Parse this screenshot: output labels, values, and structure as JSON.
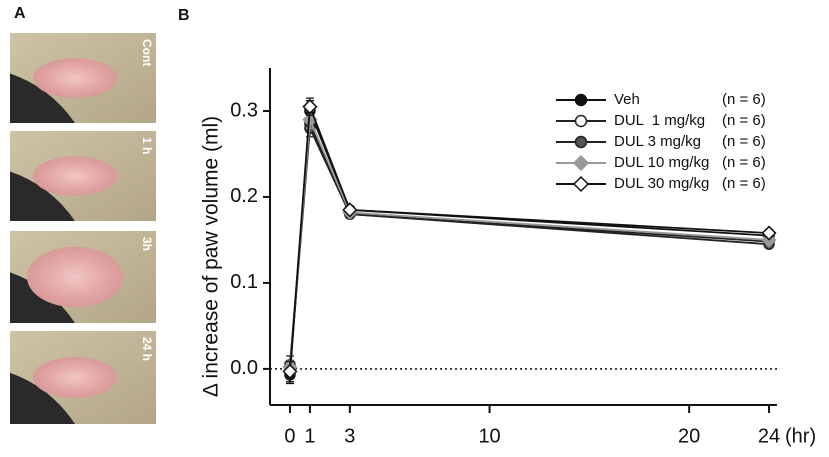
{
  "panel_a": {
    "label": "A",
    "images": [
      {
        "label": "Cont"
      },
      {
        "label": "1 h"
      },
      {
        "label": "3h"
      },
      {
        "label": "24 h"
      }
    ]
  },
  "chart_data": {
    "type": "line",
    "panel_label": "B",
    "x_label": "(hr)",
    "y_label": "Δ increase of paw volume (ml)",
    "x": [
      0,
      1,
      3,
      24
    ],
    "xlim": [
      -1,
      24.4
    ],
    "xticks": [
      0,
      1,
      3,
      10,
      20,
      24
    ],
    "ylim": [
      -0.042,
      0.35
    ],
    "yticks": [
      {
        "value": 0,
        "label": "0.0"
      },
      0.1,
      0.2,
      0.3
    ],
    "hline": 0,
    "legend": "top-right",
    "series": [
      {
        "name": "Veh",
        "n": "(n = 6)",
        "color": "#111111",
        "marker": "circle",
        "fill": "#111111",
        "values": [
          -0.007,
          0.3,
          0.185,
          0.155
        ],
        "errors": [
          0.01,
          0.012,
          0.003,
          0.004
        ]
      },
      {
        "name": "DUL  1 mg/kg",
        "n": "(n = 6)",
        "color": "#222222",
        "marker": "circle",
        "fill": "#ffffff",
        "values": [
          0.005,
          0.285,
          0.18,
          0.148
        ],
        "errors": [
          0.01,
          0.01,
          0.003,
          0.004
        ]
      },
      {
        "name": "DUL 3 mg/kg",
        "n": "(n = 6)",
        "color": "#222222",
        "marker": "circle",
        "fill": "#555555",
        "values": [
          0.0,
          0.28,
          0.18,
          0.145
        ],
        "errors": [
          0.008,
          0.01,
          0.003,
          0.004
        ]
      },
      {
        "name": "DUL 10 mg/kg",
        "n": "(n = 6)",
        "color": "#999999",
        "marker": "diamond",
        "fill": "#999999",
        "values": [
          0.002,
          0.29,
          0.182,
          0.15
        ],
        "errors": [
          0.008,
          0.01,
          0.003,
          0.004
        ]
      },
      {
        "name": "DUL 30 mg/kg",
        "n": "(n = 6)",
        "color": "#111111",
        "marker": "diamond",
        "fill": "#ffffff",
        "values": [
          -0.003,
          0.305,
          0.185,
          0.158
        ],
        "errors": [
          0.012,
          0.01,
          0.003,
          0.004
        ]
      }
    ]
  }
}
